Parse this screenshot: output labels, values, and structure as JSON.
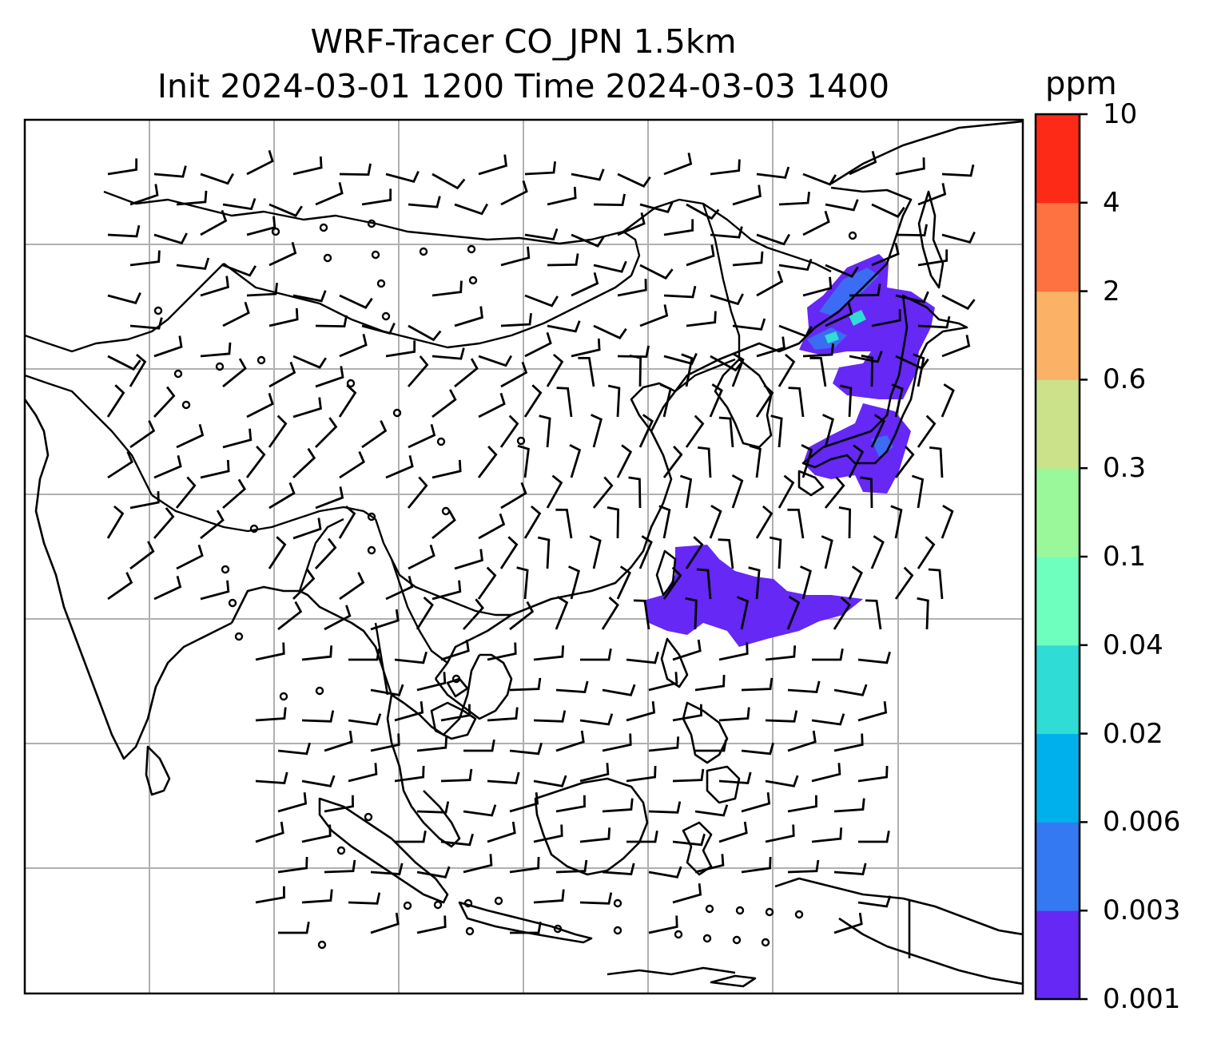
{
  "title": {
    "line1": "WRF-Tracer CO_JPN 1.5km",
    "line2": "Init 2024-03-01 1200 Time 2024-03-03 1400"
  },
  "colorbar": {
    "unit": "ppm",
    "levels": [
      "0.001",
      "0.003",
      "0.006",
      "0.02",
      "0.04",
      "0.1",
      "0.3",
      "0.6",
      "2",
      "4",
      "10"
    ],
    "colors": [
      "#6528f5",
      "#3478f2",
      "#00b0ec",
      "#30dcd6",
      "#6efebe",
      "#9af89a",
      "#cbe18a",
      "#fbb166",
      "#fe7140",
      "#fc2a17"
    ]
  },
  "map": {
    "grid": true,
    "frame_color": "#000000",
    "grid_color": "#b0b0b0",
    "tracer_color_min": "#6528f5"
  }
}
